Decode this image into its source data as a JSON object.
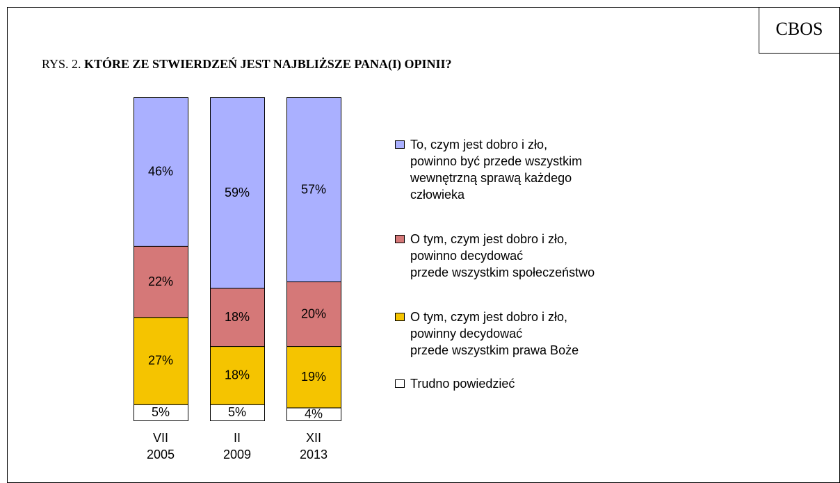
{
  "chart_data": {
    "type": "stacked_bar",
    "source_label": "CBOS",
    "figure_label": "RYS. 2.",
    "title": "KTÓRE ZE STWIERDZEŃ JEST NAJBLIŻSZE PANA(I) OPINII?",
    "categories": [
      "VII\n2005",
      "II\n2009",
      "XII\n2013"
    ],
    "ylim": [
      0,
      100
    ],
    "series": [
      {
        "name": "To, czym jest dobro i zło,\npowinno być przede wszystkim\nwewnętrzną sprawą każdego\nczłowieka",
        "color": "#aab0ff",
        "values": [
          46,
          59,
          57
        ],
        "value_labels": [
          "46%",
          "59%",
          "57%"
        ]
      },
      {
        "name": "O tym, czym jest dobro i zło,\npowinno decydować\nprzede wszystkim społeczeństwo",
        "color": "#d57878",
        "values": [
          22,
          18,
          20
        ],
        "value_labels": [
          "22%",
          "18%",
          "20%"
        ]
      },
      {
        "name": "O tym, czym jest dobro i zło,\npowinny decydować\nprzede wszystkim prawa Boże",
        "color": "#f5c400",
        "values": [
          27,
          18,
          19
        ],
        "value_labels": [
          "27%",
          "18%",
          "19%"
        ]
      },
      {
        "name": "Trudno powiedzieć",
        "color": "#ffffff",
        "values": [
          5,
          5,
          4
        ],
        "value_labels": [
          "5%",
          "5%",
          "4%"
        ]
      }
    ]
  }
}
